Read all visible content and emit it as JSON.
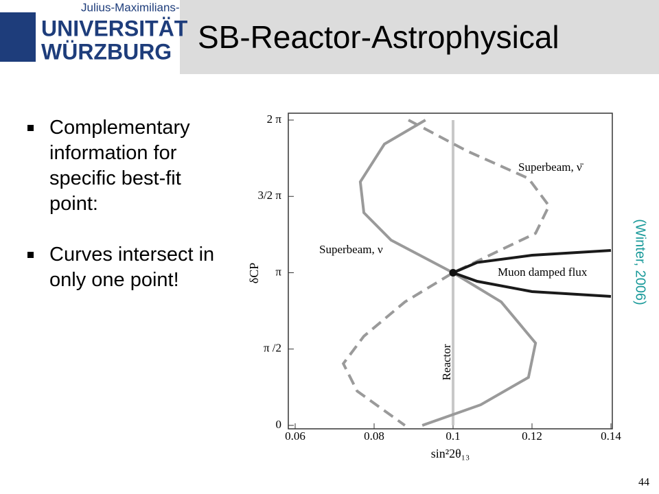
{
  "header": {
    "logo_line1": "Julius-Maximilians-",
    "logo_line2": "UNIVERSITÄT",
    "logo_line3": "WÜRZBURG",
    "title": "SB-Reactor-Astrophysical"
  },
  "bullets": [
    "Complementary information for specific best-fit point:",
    "Curves intersect in only one point!"
  ],
  "citation": "(Winter, 2006)",
  "page_number": "44",
  "chart_data": {
    "type": "line",
    "xlabel": "sin²2θ₁₃",
    "ylabel": "δCP",
    "xlim": [
      0.06,
      0.14
    ],
    "xticks": [
      0.06,
      0.08,
      0.1,
      0.12,
      0.14
    ],
    "ylim": [
      0,
      6.2832
    ],
    "yticks": [
      0,
      {
        "value": 1.5708,
        "label": "π /2"
      },
      {
        "value": 3.1416,
        "label": "π"
      },
      {
        "value": 4.7124,
        "label": "3/2 π"
      },
      {
        "value": 6.2832,
        "label": "2 π"
      }
    ],
    "series": [
      {
        "name": "Superbeam, ν",
        "color": "#9a9a9a",
        "dashed": false,
        "x": [
          0.093,
          0.0826,
          0.0765,
          0.0774,
          0.0843,
          0.1,
          0.1122,
          0.1209,
          0.1191,
          0.107,
          0.0922
        ],
        "values": [
          6.2832,
          5.789,
          5.012,
          4.377,
          3.812,
          3.1416,
          2.541,
          1.694,
          0.988,
          0.424,
          0
        ]
      },
      {
        "name": "Superbeam, ν̄",
        "color": "#9a9a9a",
        "dashed": true,
        "x": [
          0.0887,
          0.1035,
          0.1191,
          0.1243,
          0.1209,
          0.1,
          0.0878,
          0.0774,
          0.0722,
          0.0757,
          0.0878
        ],
        "values": [
          6.2832,
          5.648,
          5.083,
          4.518,
          3.953,
          3.1416,
          2.541,
          1.835,
          1.271,
          0.706,
          0
        ]
      },
      {
        "name": "Muon damped flux",
        "color": "#1a1a1a",
        "dashed": false,
        "x": [
          0.1,
          0.1061,
          0.12,
          0.14,
          null,
          0.1,
          0.1061,
          0.12,
          0.14
        ],
        "values": [
          3.1416,
          3.353,
          3.501,
          3.6,
          null,
          3.1416,
          2.965,
          2.753,
          2.654
        ]
      },
      {
        "name": "Reactor",
        "color": "#c8c8c8",
        "dashed": false,
        "x": [
          0.1,
          0.1
        ],
        "values": [
          0,
          6.2832
        ]
      }
    ],
    "point": {
      "x": 0.1,
      "y": 3.1416
    }
  }
}
